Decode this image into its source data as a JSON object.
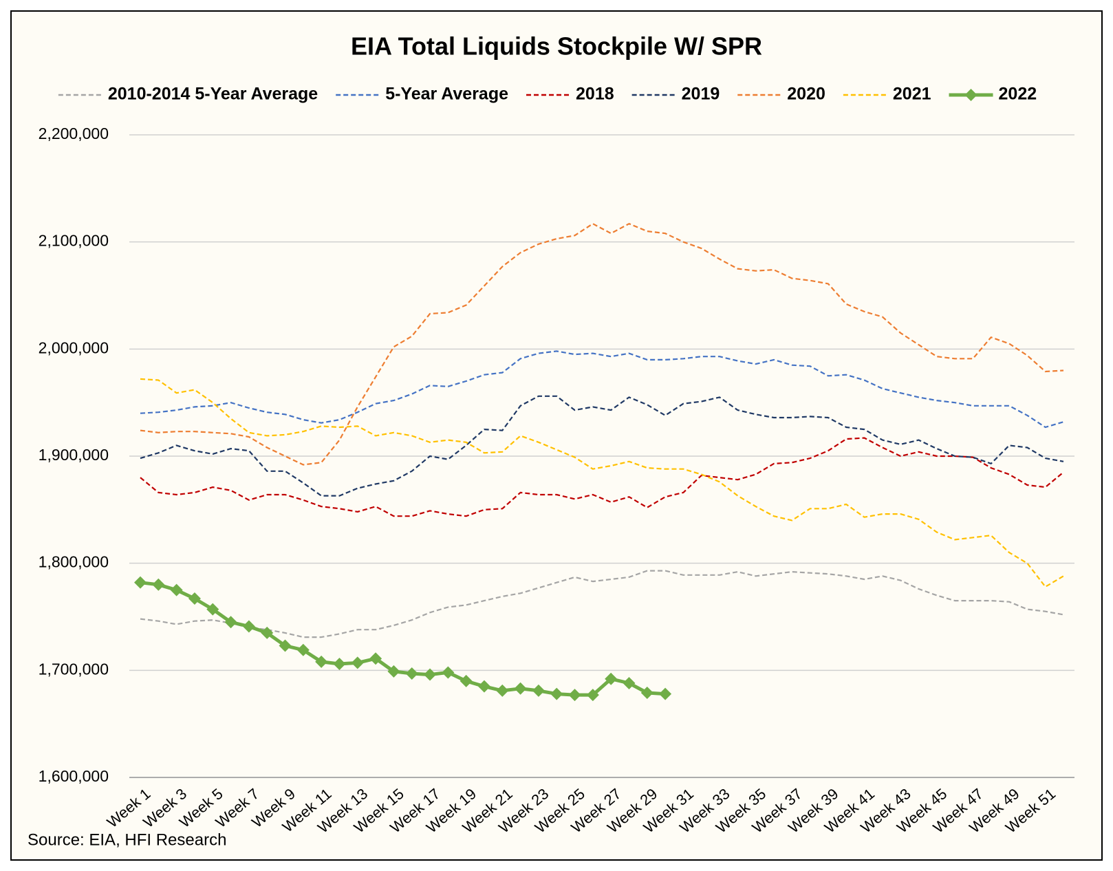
{
  "chart_data": {
    "type": "line",
    "title": "EIA Total Liquids Stockpile W/ SPR",
    "source": "Source: EIA, HFI Research",
    "legend": "top",
    "grid": true,
    "categories": [
      "Week 1",
      null,
      "Week 3",
      null,
      "Week 5",
      null,
      "Week 7",
      null,
      "Week 9",
      null,
      "Week 11",
      null,
      "Week 13",
      null,
      "Week 15",
      null,
      "Week 17",
      null,
      "Week 19",
      null,
      "Week 21",
      null,
      "Week 23",
      null,
      "Week 25",
      null,
      "Week 27",
      null,
      "Week 29",
      null,
      "Week 31",
      null,
      "Week 33",
      null,
      "Week 35",
      null,
      "Week 37",
      null,
      "Week 39",
      null,
      "Week 41",
      null,
      "Week 43",
      null,
      "Week 45",
      null,
      "Week 47",
      null,
      "Week 49",
      null,
      "Week 51",
      null
    ],
    "ylim": [
      1600000,
      2200000
    ],
    "yticks": [
      {
        "value": 1600000,
        "label": "1,600,000"
      },
      {
        "value": 1700000,
        "label": "1,700,000"
      },
      {
        "value": 1800000,
        "label": "1,800,000"
      },
      {
        "value": 1900000,
        "label": "1,900,000"
      },
      {
        "value": 2000000,
        "label": "2,000,000"
      },
      {
        "value": 2100000,
        "label": "2,100,000"
      },
      {
        "value": 2200000,
        "label": "2,200,000"
      }
    ],
    "series": [
      {
        "name": "2010-2014 5-Year Average",
        "color": "#a5a5a5",
        "dashed": true,
        "values": [
          1748000,
          1746000,
          1743000,
          1746000,
          1747000,
          1744000,
          1740000,
          1738000,
          1735000,
          1731000,
          1731000,
          1734000,
          1738000,
          1738000,
          1742000,
          1747000,
          1754000,
          1759000,
          1761000,
          1765000,
          1769000,
          1772000,
          1777000,
          1782000,
          1787000,
          1783000,
          1785000,
          1787000,
          1793000,
          1793000,
          1789000,
          1789000,
          1789000,
          1792000,
          1788000,
          1790000,
          1792000,
          1791000,
          1790000,
          1788000,
          1785000,
          1788000,
          1784000,
          1776000,
          1770000,
          1765000,
          1765000,
          1765000,
          1764000,
          1757000,
          1755000,
          1752000
        ]
      },
      {
        "name": "5-Year Average",
        "color": "#4472c4",
        "dashed": true,
        "values": [
          1940000,
          1941000,
          1943000,
          1946000,
          1947000,
          1950000,
          1945000,
          1941000,
          1939000,
          1934000,
          1931000,
          1934000,
          1941000,
          1949000,
          1952000,
          1958000,
          1966000,
          1965000,
          1970000,
          1976000,
          1978000,
          1991000,
          1996000,
          1998000,
          1995000,
          1996000,
          1993000,
          1996000,
          1990000,
          1990000,
          1991000,
          1993000,
          1993000,
          1989000,
          1986000,
          1990000,
          1985000,
          1984000,
          1975000,
          1976000,
          1971000,
          1963000,
          1959000,
          1955000,
          1952000,
          1950000,
          1947000,
          1947000,
          1947000,
          1938000,
          1927000,
          1932000
        ]
      },
      {
        "name": "2018",
        "color": "#c00000",
        "dashed": true,
        "values": [
          1880000,
          1866000,
          1864000,
          1866000,
          1871000,
          1868000,
          1859000,
          1864000,
          1864000,
          1859000,
          1853000,
          1851000,
          1848000,
          1853000,
          1844000,
          1844000,
          1849000,
          1846000,
          1844000,
          1850000,
          1851000,
          1866000,
          1864000,
          1864000,
          1860000,
          1864000,
          1857000,
          1862000,
          1852000,
          1862000,
          1866000,
          1882000,
          1880000,
          1878000,
          1883000,
          1893000,
          1894000,
          1898000,
          1905000,
          1916000,
          1917000,
          1908000,
          1900000,
          1904000,
          1900000,
          1900000,
          1899000,
          1889000,
          1883000,
          1873000,
          1871000,
          1885000
        ]
      },
      {
        "name": "2019",
        "color": "#1f3864",
        "dashed": true,
        "values": [
          1898000,
          1903000,
          1910000,
          1905000,
          1902000,
          1907000,
          1905000,
          1886000,
          1886000,
          1875000,
          1863000,
          1863000,
          1870000,
          1874000,
          1877000,
          1886000,
          1900000,
          1897000,
          1910000,
          1925000,
          1924000,
          1947000,
          1956000,
          1956000,
          1943000,
          1946000,
          1943000,
          1955000,
          1948000,
          1938000,
          1949000,
          1951000,
          1955000,
          1943000,
          1939000,
          1936000,
          1936000,
          1937000,
          1936000,
          1927000,
          1925000,
          1915000,
          1911000,
          1915000,
          1907000,
          1900000,
          1899000,
          1893000,
          1910000,
          1908000,
          1898000,
          1895000
        ]
      },
      {
        "name": "2020",
        "color": "#ed7d31",
        "dashed": true,
        "values": [
          1924000,
          1922000,
          1923000,
          1923000,
          1922000,
          1921000,
          1918000,
          1908000,
          1900000,
          1892000,
          1894000,
          1915000,
          1946000,
          1974000,
          2002000,
          2012000,
          2033000,
          2034000,
          2041000,
          2059000,
          2077000,
          2090000,
          2098000,
          2103000,
          2106000,
          2117000,
          2108000,
          2117000,
          2110000,
          2108000,
          2100000,
          2094000,
          2084000,
          2075000,
          2073000,
          2074000,
          2066000,
          2064000,
          2061000,
          2042000,
          2035000,
          2030000,
          2015000,
          2004000,
          1993000,
          1991000,
          1991000,
          2011000,
          2005000,
          1994000,
          1979000,
          1980000
        ]
      },
      {
        "name": "2021",
        "color": "#ffc000",
        "dashed": true,
        "values": [
          1972000,
          1971000,
          1959000,
          1962000,
          1950000,
          1935000,
          1922000,
          1919000,
          1920000,
          1923000,
          1928000,
          1927000,
          1928000,
          1919000,
          1922000,
          1919000,
          1913000,
          1915000,
          1913000,
          1903000,
          1904000,
          1919000,
          1913000,
          1906000,
          1899000,
          1888000,
          1891000,
          1895000,
          1889000,
          1888000,
          1888000,
          1883000,
          1876000,
          1863000,
          1853000,
          1844000,
          1840000,
          1851000,
          1851000,
          1855000,
          1843000,
          1846000,
          1846000,
          1841000,
          1829000,
          1822000,
          1824000,
          1826000,
          1810000,
          1800000,
          1778000,
          1788000
        ]
      },
      {
        "name": "2022",
        "color": "#70ad47",
        "dashed": false,
        "marker": "diamond",
        "values": [
          1782000,
          1780000,
          1775000,
          1767000,
          1757000,
          1745000,
          1741000,
          1735000,
          1723000,
          1719000,
          1708000,
          1706000,
          1707000,
          1711000,
          1699000,
          1697000,
          1696000,
          1698000,
          1690000,
          1685000,
          1681000,
          1683000,
          1681000,
          1678000,
          1677000,
          1677000,
          1692000,
          1688000,
          1679000,
          1678000,
          null,
          null,
          null,
          null,
          null,
          null,
          null,
          null,
          null,
          null,
          null,
          null,
          null,
          null,
          null,
          null,
          null,
          null,
          null,
          null,
          null,
          null
        ]
      }
    ]
  }
}
